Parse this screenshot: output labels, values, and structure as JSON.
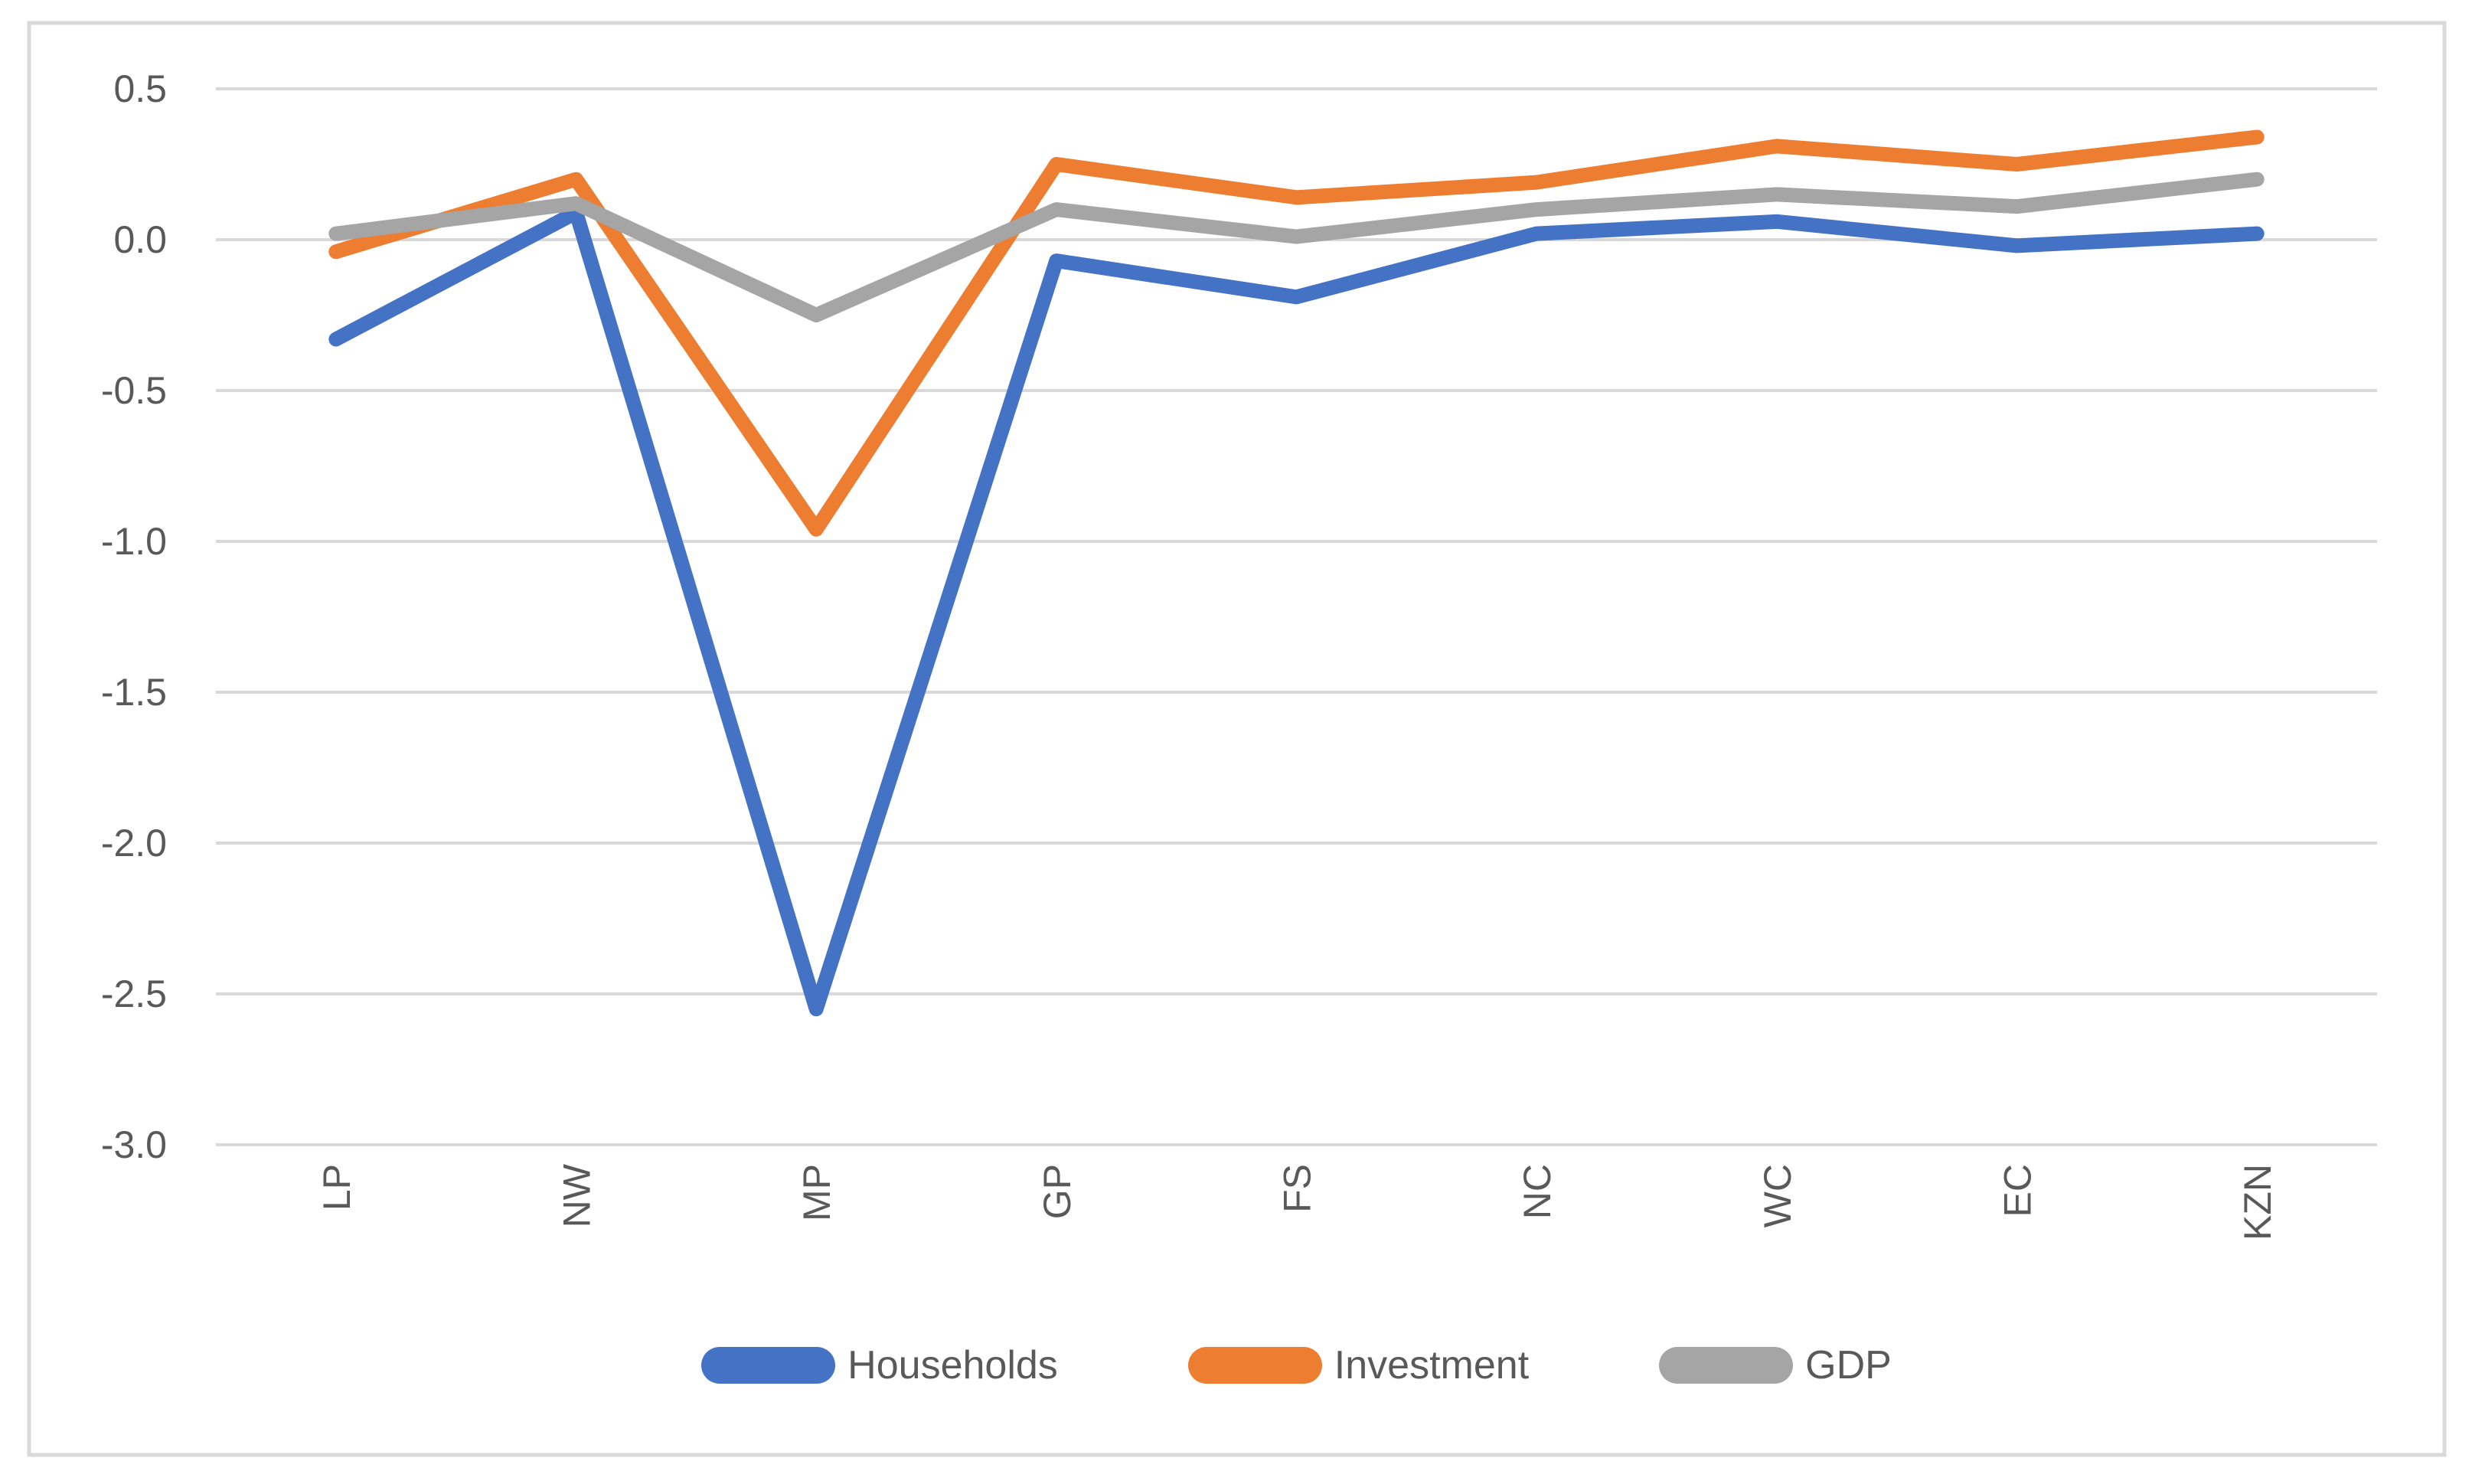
{
  "chart_data": {
    "type": "line",
    "title": "",
    "xlabel": "",
    "ylabel": "",
    "categories": [
      "LP",
      "NW",
      "MP",
      "GP",
      "FS",
      "NC",
      "WC",
      "EC",
      "KZN"
    ],
    "series": [
      {
        "name": "Households",
        "color": "#4472C4",
        "values": [
          -0.33,
          0.09,
          -2.55,
          -0.07,
          -0.19,
          0.02,
          0.06,
          -0.02,
          0.02
        ]
      },
      {
        "name": "Investment",
        "color": "#ED7D31",
        "values": [
          -0.04,
          0.2,
          -0.96,
          0.25,
          0.14,
          0.19,
          0.31,
          0.25,
          0.34
        ]
      },
      {
        "name": "GDP",
        "color": "#A5A5A5",
        "values": [
          0.02,
          0.12,
          -0.25,
          0.1,
          0.01,
          0.1,
          0.15,
          0.11,
          0.2
        ]
      }
    ],
    "y_ticks": [
      {
        "value": 0.5,
        "label": "0.5"
      },
      {
        "value": 0.0,
        "label": "0.0"
      },
      {
        "value": -0.5,
        "label": "-0.5"
      },
      {
        "value": -1.0,
        "label": "-1.0"
      },
      {
        "value": -1.5,
        "label": "-1.5"
      },
      {
        "value": -2.0,
        "label": "-2.0"
      },
      {
        "value": -2.5,
        "label": "-2.5"
      },
      {
        "value": -3.0,
        "label": "-3.0"
      }
    ],
    "ylim": [
      -3.0,
      0.5
    ],
    "grid": true,
    "legend_position": "bottom",
    "colors": {
      "gridline": "#D9D9D9",
      "chart_border": "#D9D9D9",
      "axis_text": "#595959"
    }
  }
}
